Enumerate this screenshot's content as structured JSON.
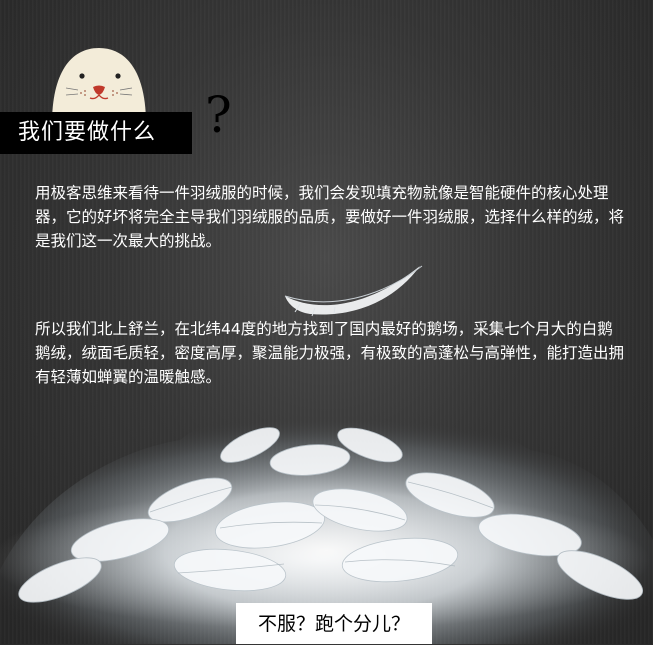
{
  "header": {
    "title": "我们要做什么",
    "question_mark": "?"
  },
  "paragraphs": [
    "用极客思维来看待一件羽绒服的时候，我们会发现填充物就像是智能硬件的核心处理器，它的好坏将完全主导我们羽绒服的品质，要做好一件羽绒服，选择什么样的绒，将是我们这一次最大的挑战。",
    "所以我们北上舒兰，在北纬44度的地方找到了国内最好的鹅场，采集七个月大的白鹅鹅绒，绒面毛质轻，密度高厚，聚温能力极强，有极致的高蓬松与高弹性，能打造出拥有轻薄如蝉翼的温暖触感。"
  ],
  "footer": {
    "label": "不服？跑个分儿？"
  },
  "icons": {
    "mascot": "seal-mascot-icon",
    "feather": "feather-icon",
    "feather_pile": "feather-pile-image"
  },
  "colors": {
    "background": "#333333",
    "title_box": "#000000",
    "text": "#ffffff",
    "footer_box": "#ffffff"
  }
}
